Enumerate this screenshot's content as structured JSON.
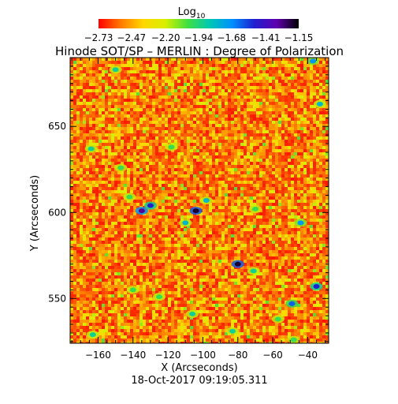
{
  "chart_data": {
    "type": "heatmap",
    "title": "Hinode SOT/SP – MERLIN : Degree of Polarization",
    "xlabel": "X (Arcseconds)",
    "ylabel": "Y (Arcseconds)",
    "footer": "18-Oct-2017 09:19:05.311",
    "xlim": [
      -176,
      -28
    ],
    "ylim": [
      524,
      690
    ],
    "x_ticks": [
      -160,
      -140,
      -120,
      -100,
      -80,
      -60,
      -40
    ],
    "y_ticks": [
      550,
      600,
      650
    ],
    "x_tick_labels": [
      "−160",
      "−140",
      "−120",
      "−100",
      "−80",
      "−60",
      "−40"
    ],
    "y_tick_labels": [
      "550",
      "600",
      "650"
    ],
    "colorbar": {
      "label_main": "Log",
      "label_sub": "10",
      "range": [
        -2.73,
        -1.15
      ],
      "tick_values": [
        -2.73,
        -2.47,
        -2.2,
        -1.94,
        -1.68,
        -1.41,
        -1.15
      ],
      "tick_labels": [
        "−2.73",
        "−2.47",
        "−2.20",
        "−1.94",
        "−1.68",
        "−1.41",
        "−1.15"
      ],
      "colors": [
        "#ff0000",
        "#ff7a00",
        "#ffd700",
        "#d8f000",
        "#40e040",
        "#00c8b4",
        "#0090ff",
        "#2020d0",
        "#6000b0",
        "#000000"
      ]
    },
    "features": [
      {
        "x": -150,
        "y": 683,
        "value": -1.9
      },
      {
        "x": -37,
        "y": 688,
        "value": -1.7
      },
      {
        "x": -33,
        "y": 663,
        "value": -1.8
      },
      {
        "x": -164,
        "y": 637,
        "value": -1.9
      },
      {
        "x": -118,
        "y": 638,
        "value": -2.0
      },
      {
        "x": -147,
        "y": 626,
        "value": -2.0
      },
      {
        "x": -142,
        "y": 609,
        "value": -2.0
      },
      {
        "x": -135,
        "y": 601,
        "value": -1.3
      },
      {
        "x": -130,
        "y": 604,
        "value": -1.5
      },
      {
        "x": -104,
        "y": 601,
        "value": -1.2
      },
      {
        "x": -110,
        "y": 594,
        "value": -1.8
      },
      {
        "x": -98,
        "y": 607,
        "value": -1.8
      },
      {
        "x": -70,
        "y": 602,
        "value": -2.0
      },
      {
        "x": -44,
        "y": 594,
        "value": -1.7
      },
      {
        "x": -80,
        "y": 570,
        "value": -1.2
      },
      {
        "x": -71,
        "y": 566,
        "value": -1.9
      },
      {
        "x": -140,
        "y": 555,
        "value": -2.0
      },
      {
        "x": -125,
        "y": 551,
        "value": -2.0
      },
      {
        "x": -49,
        "y": 547,
        "value": -1.6
      },
      {
        "x": -35,
        "y": 557,
        "value": -1.5
      },
      {
        "x": -106,
        "y": 541,
        "value": -1.9
      },
      {
        "x": -163,
        "y": 529,
        "value": -1.9
      },
      {
        "x": -83,
        "y": 531,
        "value": -1.9
      },
      {
        "x": -57,
        "y": 538,
        "value": -2.0
      },
      {
        "x": -48,
        "y": 526,
        "value": -2.0
      }
    ]
  }
}
